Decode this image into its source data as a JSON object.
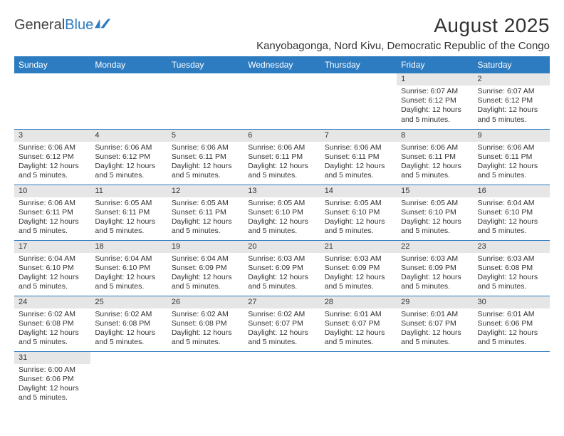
{
  "brand": {
    "part1": "General",
    "part2": "Blue"
  },
  "title": "August 2025",
  "location": "Kanyobagonga, Nord Kivu, Democratic Republic of the Congo",
  "colors": {
    "header_bg": "#2d7cc1",
    "header_fg": "#ffffff",
    "daynum_bg": "#e6e6e6",
    "row_border": "#2d7cc1",
    "text": "#333333",
    "page_bg": "#ffffff"
  },
  "dayHeaders": [
    "Sunday",
    "Monday",
    "Tuesday",
    "Wednesday",
    "Thursday",
    "Friday",
    "Saturday"
  ],
  "weeks": [
    [
      null,
      null,
      null,
      null,
      null,
      {
        "n": "1",
        "sunrise": "Sunrise: 6:07 AM",
        "sunset": "Sunset: 6:12 PM",
        "daylight": "Daylight: 12 hours and 5 minutes."
      },
      {
        "n": "2",
        "sunrise": "Sunrise: 6:07 AM",
        "sunset": "Sunset: 6:12 PM",
        "daylight": "Daylight: 12 hours and 5 minutes."
      }
    ],
    [
      {
        "n": "3",
        "sunrise": "Sunrise: 6:06 AM",
        "sunset": "Sunset: 6:12 PM",
        "daylight": "Daylight: 12 hours and 5 minutes."
      },
      {
        "n": "4",
        "sunrise": "Sunrise: 6:06 AM",
        "sunset": "Sunset: 6:12 PM",
        "daylight": "Daylight: 12 hours and 5 minutes."
      },
      {
        "n": "5",
        "sunrise": "Sunrise: 6:06 AM",
        "sunset": "Sunset: 6:11 PM",
        "daylight": "Daylight: 12 hours and 5 minutes."
      },
      {
        "n": "6",
        "sunrise": "Sunrise: 6:06 AM",
        "sunset": "Sunset: 6:11 PM",
        "daylight": "Daylight: 12 hours and 5 minutes."
      },
      {
        "n": "7",
        "sunrise": "Sunrise: 6:06 AM",
        "sunset": "Sunset: 6:11 PM",
        "daylight": "Daylight: 12 hours and 5 minutes."
      },
      {
        "n": "8",
        "sunrise": "Sunrise: 6:06 AM",
        "sunset": "Sunset: 6:11 PM",
        "daylight": "Daylight: 12 hours and 5 minutes."
      },
      {
        "n": "9",
        "sunrise": "Sunrise: 6:06 AM",
        "sunset": "Sunset: 6:11 PM",
        "daylight": "Daylight: 12 hours and 5 minutes."
      }
    ],
    [
      {
        "n": "10",
        "sunrise": "Sunrise: 6:06 AM",
        "sunset": "Sunset: 6:11 PM",
        "daylight": "Daylight: 12 hours and 5 minutes."
      },
      {
        "n": "11",
        "sunrise": "Sunrise: 6:05 AM",
        "sunset": "Sunset: 6:11 PM",
        "daylight": "Daylight: 12 hours and 5 minutes."
      },
      {
        "n": "12",
        "sunrise": "Sunrise: 6:05 AM",
        "sunset": "Sunset: 6:11 PM",
        "daylight": "Daylight: 12 hours and 5 minutes."
      },
      {
        "n": "13",
        "sunrise": "Sunrise: 6:05 AM",
        "sunset": "Sunset: 6:10 PM",
        "daylight": "Daylight: 12 hours and 5 minutes."
      },
      {
        "n": "14",
        "sunrise": "Sunrise: 6:05 AM",
        "sunset": "Sunset: 6:10 PM",
        "daylight": "Daylight: 12 hours and 5 minutes."
      },
      {
        "n": "15",
        "sunrise": "Sunrise: 6:05 AM",
        "sunset": "Sunset: 6:10 PM",
        "daylight": "Daylight: 12 hours and 5 minutes."
      },
      {
        "n": "16",
        "sunrise": "Sunrise: 6:04 AM",
        "sunset": "Sunset: 6:10 PM",
        "daylight": "Daylight: 12 hours and 5 minutes."
      }
    ],
    [
      {
        "n": "17",
        "sunrise": "Sunrise: 6:04 AM",
        "sunset": "Sunset: 6:10 PM",
        "daylight": "Daylight: 12 hours and 5 minutes."
      },
      {
        "n": "18",
        "sunrise": "Sunrise: 6:04 AM",
        "sunset": "Sunset: 6:10 PM",
        "daylight": "Daylight: 12 hours and 5 minutes."
      },
      {
        "n": "19",
        "sunrise": "Sunrise: 6:04 AM",
        "sunset": "Sunset: 6:09 PM",
        "daylight": "Daylight: 12 hours and 5 minutes."
      },
      {
        "n": "20",
        "sunrise": "Sunrise: 6:03 AM",
        "sunset": "Sunset: 6:09 PM",
        "daylight": "Daylight: 12 hours and 5 minutes."
      },
      {
        "n": "21",
        "sunrise": "Sunrise: 6:03 AM",
        "sunset": "Sunset: 6:09 PM",
        "daylight": "Daylight: 12 hours and 5 minutes."
      },
      {
        "n": "22",
        "sunrise": "Sunrise: 6:03 AM",
        "sunset": "Sunset: 6:09 PM",
        "daylight": "Daylight: 12 hours and 5 minutes."
      },
      {
        "n": "23",
        "sunrise": "Sunrise: 6:03 AM",
        "sunset": "Sunset: 6:08 PM",
        "daylight": "Daylight: 12 hours and 5 minutes."
      }
    ],
    [
      {
        "n": "24",
        "sunrise": "Sunrise: 6:02 AM",
        "sunset": "Sunset: 6:08 PM",
        "daylight": "Daylight: 12 hours and 5 minutes."
      },
      {
        "n": "25",
        "sunrise": "Sunrise: 6:02 AM",
        "sunset": "Sunset: 6:08 PM",
        "daylight": "Daylight: 12 hours and 5 minutes."
      },
      {
        "n": "26",
        "sunrise": "Sunrise: 6:02 AM",
        "sunset": "Sunset: 6:08 PM",
        "daylight": "Daylight: 12 hours and 5 minutes."
      },
      {
        "n": "27",
        "sunrise": "Sunrise: 6:02 AM",
        "sunset": "Sunset: 6:07 PM",
        "daylight": "Daylight: 12 hours and 5 minutes."
      },
      {
        "n": "28",
        "sunrise": "Sunrise: 6:01 AM",
        "sunset": "Sunset: 6:07 PM",
        "daylight": "Daylight: 12 hours and 5 minutes."
      },
      {
        "n": "29",
        "sunrise": "Sunrise: 6:01 AM",
        "sunset": "Sunset: 6:07 PM",
        "daylight": "Daylight: 12 hours and 5 minutes."
      },
      {
        "n": "30",
        "sunrise": "Sunrise: 6:01 AM",
        "sunset": "Sunset: 6:06 PM",
        "daylight": "Daylight: 12 hours and 5 minutes."
      }
    ],
    [
      {
        "n": "31",
        "sunrise": "Sunrise: 6:00 AM",
        "sunset": "Sunset: 6:06 PM",
        "daylight": "Daylight: 12 hours and 5 minutes."
      },
      null,
      null,
      null,
      null,
      null,
      null
    ]
  ]
}
